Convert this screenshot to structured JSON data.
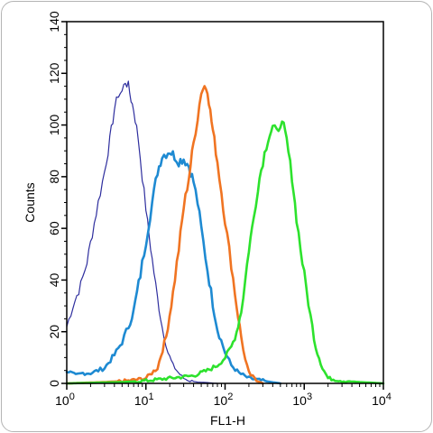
{
  "chart_data": {
    "type": "line",
    "xlabel": "FL1-H",
    "ylabel": "Counts",
    "x_scale": "log",
    "xlim": [
      1,
      10000
    ],
    "ylim": [
      0,
      140
    ],
    "grid": false,
    "x_ticks": [
      {
        "value": 1,
        "base": "10",
        "exp": "0"
      },
      {
        "value": 10,
        "base": "10",
        "exp": "1"
      },
      {
        "value": 100,
        "base": "10",
        "exp": "2"
      },
      {
        "value": 1000,
        "base": "10",
        "exp": "3"
      },
      {
        "value": 10000,
        "base": "10",
        "exp": "4"
      }
    ],
    "y_ticks": [
      0,
      20,
      40,
      60,
      80,
      100,
      120,
      140
    ],
    "series": [
      {
        "color": "#2e2e9e",
        "stroke_style": "thin",
        "x": [
          1.0,
          1.2,
          1.5,
          1.8,
          2.1,
          2.5,
          3.0,
          3.5,
          4.0,
          4.5,
          5.0,
          5.5,
          6.0,
          6.5,
          7.0,
          8.0,
          9.0,
          10.5,
          12,
          14,
          16,
          19,
          22,
          26,
          30,
          36,
          45,
          60,
          80
        ],
        "y": [
          22,
          30,
          38,
          47,
          58,
          70,
          82,
          94,
          106,
          112,
          113,
          117,
          115,
          110,
          106,
          95,
          80,
          62,
          48,
          33,
          22,
          12,
          7,
          4,
          2,
          1,
          0.5,
          0.3,
          0
        ]
      },
      {
        "color": "#1e8ad2",
        "stroke_style": "thick",
        "x": [
          1.0,
          1.3,
          1.6,
          2.0,
          2.5,
          3.0,
          4.0,
          5.0,
          6.0,
          7.0,
          8.5,
          10,
          12,
          14,
          16,
          18,
          20,
          23,
          26,
          30,
          35,
          40,
          45,
          50,
          60,
          70,
          80,
          100,
          120,
          150,
          200,
          300,
          500
        ],
        "y": [
          5,
          3,
          4,
          4,
          5,
          6,
          11,
          16,
          22,
          28,
          42,
          55,
          70,
          82,
          88,
          89,
          90,
          88,
          86,
          87,
          84,
          78,
          70,
          60,
          44,
          31,
          21,
          12,
          7,
          4,
          2,
          1,
          0
        ]
      },
      {
        "color": "#f07422",
        "stroke_style": "thick",
        "x": [
          1.0,
          3,
          6,
          10,
          14,
          18,
          22,
          26,
          30,
          35,
          40,
          45,
          50,
          55,
          60,
          65,
          70,
          80,
          90,
          100,
          120,
          140,
          160,
          180,
          200,
          250,
          300
        ],
        "y": [
          0,
          0.5,
          1,
          2,
          6,
          18,
          35,
          52,
          68,
          80,
          93,
          103,
          113,
          115,
          114,
          105,
          98,
          86,
          74,
          63,
          46,
          30,
          18,
          9,
          4,
          1,
          0
        ]
      },
      {
        "color": "#2de22d",
        "stroke_style": "thick",
        "x": [
          1.0,
          5,
          10,
          20,
          40,
          60,
          80,
          100,
          120,
          140,
          160,
          180,
          200,
          230,
          260,
          300,
          350,
          400,
          450,
          500,
          550,
          600,
          700,
          800,
          900,
          1000,
          1200,
          1400,
          1700,
          2000,
          3000,
          5000,
          10000
        ],
        "y": [
          0,
          0.5,
          1,
          2,
          3,
          5,
          7,
          10,
          14,
          20,
          28,
          40,
          52,
          64,
          76,
          86,
          95,
          99,
          97,
          101,
          99,
          94,
          80,
          64,
          52,
          42,
          26,
          14,
          6,
          2,
          1,
          0.5,
          0
        ]
      }
    ]
  }
}
